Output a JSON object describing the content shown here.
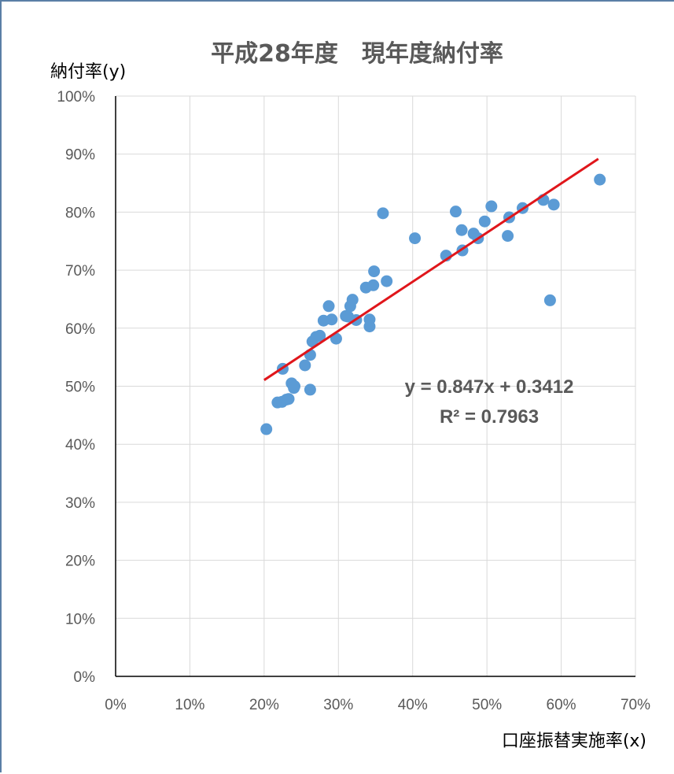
{
  "chart_data": {
    "type": "scatter",
    "title": "平成28年度　現年度納付率",
    "xlabel": "口座振替実施率(x)",
    "ylabel": "納付率(y)",
    "xlim": [
      0,
      0.7
    ],
    "ylim": [
      0,
      1.0
    ],
    "x_ticks": [
      "0%",
      "10%",
      "20%",
      "30%",
      "40%",
      "50%",
      "60%",
      "70%"
    ],
    "y_ticks": [
      "0%",
      "10%",
      "20%",
      "30%",
      "40%",
      "50%",
      "60%",
      "70%",
      "80%",
      "90%",
      "100%"
    ],
    "grid": true,
    "series": [
      {
        "color": "#5b9bd5",
        "points": [
          [
            0.203,
            0.426
          ],
          [
            0.218,
            0.472
          ],
          [
            0.224,
            0.473
          ],
          [
            0.225,
            0.53
          ],
          [
            0.23,
            0.477
          ],
          [
            0.233,
            0.478
          ],
          [
            0.237,
            0.505
          ],
          [
            0.24,
            0.497
          ],
          [
            0.241,
            0.5
          ],
          [
            0.255,
            0.536
          ],
          [
            0.262,
            0.554
          ],
          [
            0.262,
            0.494
          ],
          [
            0.265,
            0.577
          ],
          [
            0.27,
            0.585
          ],
          [
            0.275,
            0.587
          ],
          [
            0.28,
            0.613
          ],
          [
            0.287,
            0.638
          ],
          [
            0.291,
            0.615
          ],
          [
            0.297,
            0.582
          ],
          [
            0.31,
            0.621
          ],
          [
            0.313,
            0.62
          ],
          [
            0.316,
            0.638
          ],
          [
            0.319,
            0.649
          ],
          [
            0.324,
            0.614
          ],
          [
            0.337,
            0.67
          ],
          [
            0.342,
            0.615
          ],
          [
            0.342,
            0.603
          ],
          [
            0.347,
            0.674
          ],
          [
            0.348,
            0.698
          ],
          [
            0.36,
            0.798
          ],
          [
            0.365,
            0.681
          ],
          [
            0.403,
            0.755
          ],
          [
            0.445,
            0.725
          ],
          [
            0.458,
            0.801
          ],
          [
            0.466,
            0.769
          ],
          [
            0.467,
            0.734
          ],
          [
            0.482,
            0.763
          ],
          [
            0.488,
            0.755
          ],
          [
            0.497,
            0.784
          ],
          [
            0.506,
            0.81
          ],
          [
            0.528,
            0.759
          ],
          [
            0.53,
            0.791
          ],
          [
            0.548,
            0.807
          ],
          [
            0.576,
            0.821
          ],
          [
            0.585,
            0.648
          ],
          [
            0.59,
            0.813
          ],
          [
            0.652,
            0.856
          ]
        ]
      }
    ],
    "trendline": {
      "type": "linear",
      "color": "#e0161b",
      "slope": 0.847,
      "intercept": 0.3412,
      "x_range": [
        0.2,
        0.65
      ],
      "equation_label": "y = 0.847x + 0.3412",
      "r2_label": "R² = 0.7963"
    }
  }
}
